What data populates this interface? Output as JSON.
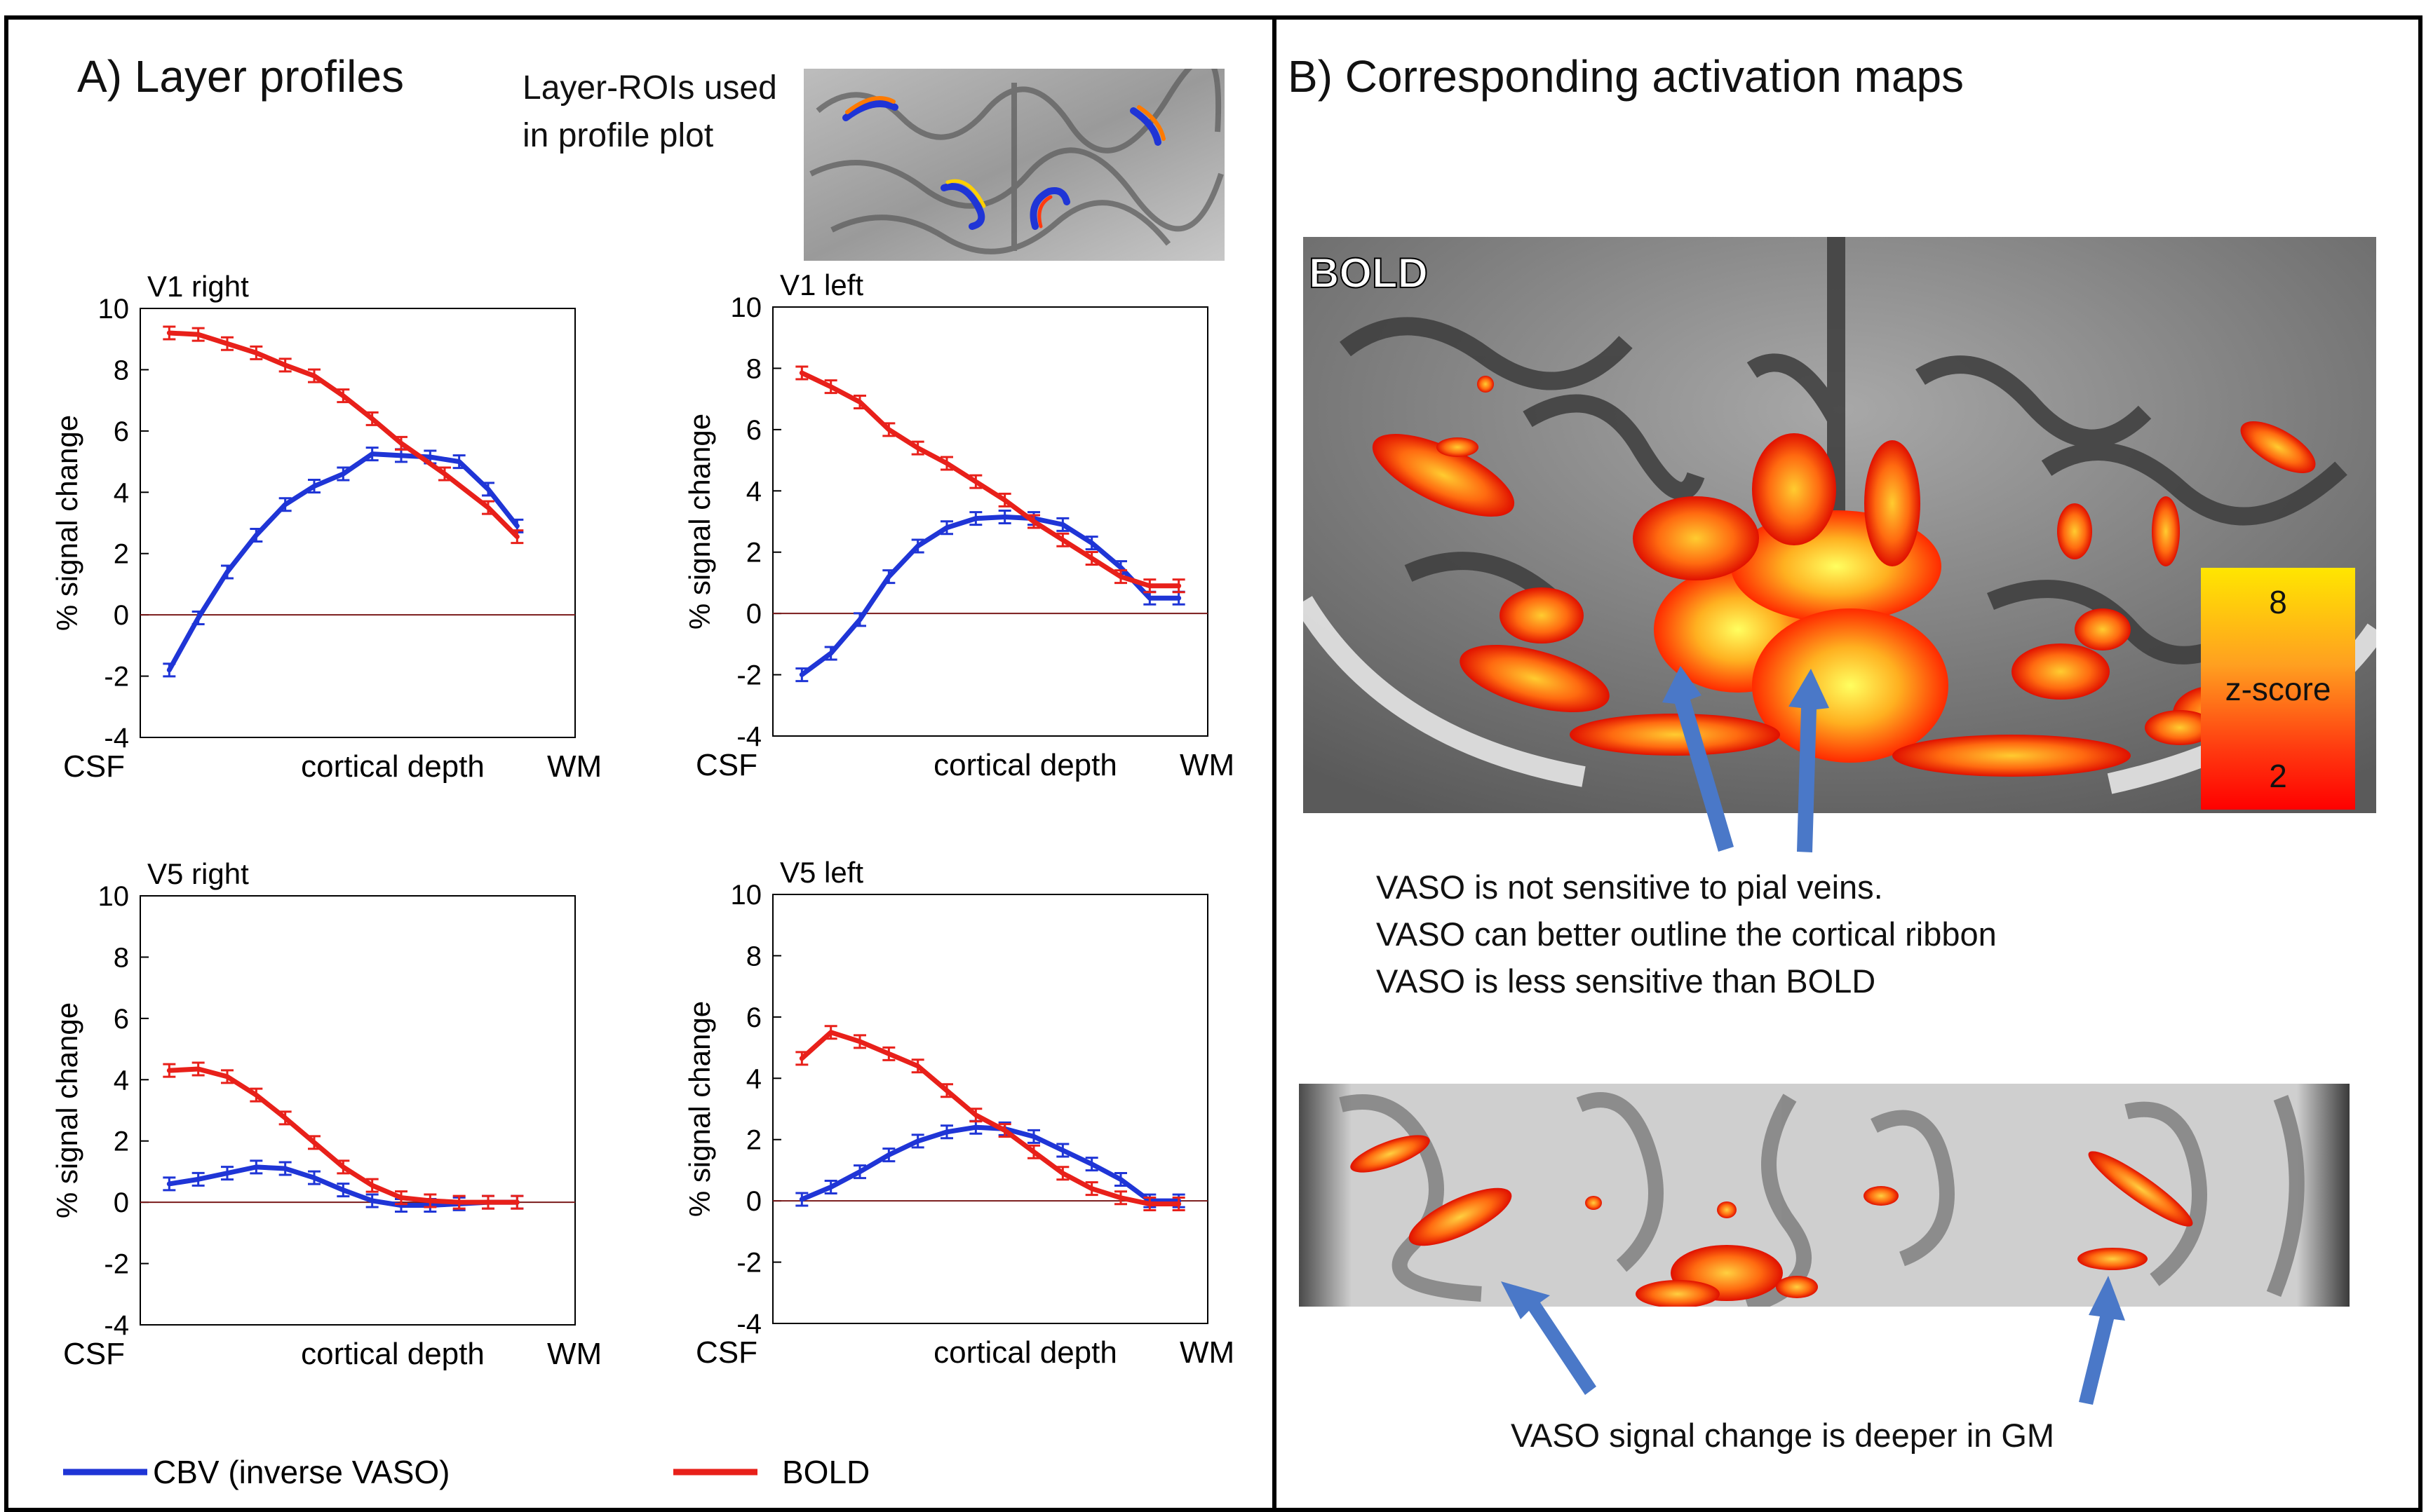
{
  "panel_a": {
    "title": "A) Layer profiles",
    "roi_note": [
      "Layer-ROIs used",
      "in profile plot"
    ]
  },
  "panel_b": {
    "title": "B) Corresponding activation maps",
    "bold_label": "BOLD",
    "colorbar": {
      "max": "8",
      "label": "z-score",
      "min": "2"
    },
    "caption_top": [
      "VASO is not sensitive to pial veins.",
      "VASO can better outline the cortical ribbon",
      "VASO is less sensitive than BOLD"
    ],
    "caption_bottom": "VASO signal change is deeper in GM"
  },
  "legend": [
    {
      "name": "CBV (inverse VASO)",
      "color": "#1f35d6"
    },
    {
      "name": "BOLD",
      "color": "#e8201a"
    }
  ],
  "colors": {
    "cbv": "#1f35d6",
    "bold": "#e8201a",
    "zero_line": "#7a1a1a"
  },
  "chart_data": [
    {
      "type": "line",
      "title": "V1 right",
      "xlabel": "cortical depth",
      "x_left": "CSF",
      "x_right": "WM",
      "ylabel": "% signal change",
      "ylim": [
        -4,
        10
      ],
      "yticks": [
        -4,
        -2,
        0,
        2,
        4,
        6,
        8,
        10
      ],
      "x": [
        1,
        2,
        3,
        4,
        5,
        6,
        7,
        8,
        9,
        10,
        11,
        12,
        13,
        14,
        15
      ],
      "series": [
        {
          "name": "CBV (inverse VASO)",
          "values": [
            -1.8,
            -0.1,
            1.4,
            2.6,
            3.6,
            4.2,
            4.6,
            5.25,
            5.2,
            5.15,
            5.0,
            4.1,
            2.9
          ],
          "x": [
            1,
            2,
            3,
            4,
            5,
            6,
            7,
            8,
            9,
            10,
            11,
            12,
            13
          ]
        },
        {
          "name": "BOLD",
          "values": [
            9.2,
            9.15,
            8.85,
            8.55,
            8.15,
            7.8,
            7.15,
            6.4,
            5.6,
            4.6,
            3.5,
            2.55
          ],
          "x": [
            1,
            2,
            3,
            4,
            5,
            6,
            7,
            8,
            9,
            10.5,
            12,
            13
          ]
        }
      ]
    },
    {
      "type": "line",
      "title": "V1 left",
      "xlabel": "cortical depth",
      "x_left": "CSF",
      "x_right": "WM",
      "ylabel": "% signal change",
      "ylim": [
        -4,
        10
      ],
      "yticks": [
        -4,
        -2,
        0,
        2,
        4,
        6,
        8,
        10
      ],
      "series": [
        {
          "name": "CBV (inverse VASO)",
          "x": [
            1,
            2,
            3,
            4,
            5,
            6,
            7,
            8,
            9,
            10,
            11,
            12,
            13,
            14
          ],
          "values": [
            -2.0,
            -1.3,
            -0.2,
            1.2,
            2.2,
            2.8,
            3.1,
            3.15,
            3.1,
            2.9,
            2.3,
            1.5,
            0.5,
            0.5
          ]
        },
        {
          "name": "BOLD",
          "x": [
            1,
            2,
            3,
            4,
            5,
            6,
            7,
            8,
            9,
            10,
            11,
            12,
            13,
            14
          ],
          "values": [
            7.85,
            7.4,
            6.9,
            6.0,
            5.4,
            4.9,
            4.3,
            3.7,
            3.0,
            2.4,
            1.8,
            1.2,
            0.9,
            0.9
          ]
        }
      ]
    },
    {
      "type": "line",
      "title": "V5 right",
      "xlabel": "cortical depth",
      "x_left": "CSF",
      "x_right": "WM",
      "ylabel": "% signal change",
      "ylim": [
        -4,
        10
      ],
      "yticks": [
        -4,
        -2,
        0,
        2,
        4,
        6,
        8,
        10
      ],
      "series": [
        {
          "name": "CBV (inverse VASO)",
          "x": [
            1,
            2,
            3,
            4,
            5,
            6,
            7,
            8,
            9,
            10,
            11,
            12,
            13
          ],
          "values": [
            0.6,
            0.75,
            0.95,
            1.15,
            1.1,
            0.8,
            0.4,
            0.05,
            -0.1,
            -0.1,
            -0.05,
            0.0,
            0.0
          ]
        },
        {
          "name": "BOLD",
          "x": [
            1,
            2,
            3,
            4,
            5,
            6,
            7,
            8,
            9,
            10,
            11,
            12,
            13
          ],
          "values": [
            4.3,
            4.35,
            4.1,
            3.5,
            2.75,
            1.95,
            1.15,
            0.55,
            0.15,
            0.05,
            0.0,
            0.0,
            0.0
          ]
        }
      ]
    },
    {
      "type": "line",
      "title": "V5 left",
      "xlabel": "cortical depth",
      "x_left": "CSF",
      "x_right": "WM",
      "ylabel": "% signal change",
      "ylim": [
        -4,
        10
      ],
      "yticks": [
        -4,
        -2,
        0,
        2,
        4,
        6,
        8,
        10
      ],
      "series": [
        {
          "name": "CBV (inverse VASO)",
          "x": [
            1,
            2,
            3,
            4,
            5,
            6,
            7,
            8,
            9,
            10,
            11,
            12,
            13,
            14
          ],
          "values": [
            0.05,
            0.45,
            0.95,
            1.5,
            1.95,
            2.25,
            2.4,
            2.35,
            2.1,
            1.65,
            1.2,
            0.7,
            0.0,
            0.0
          ]
        },
        {
          "name": "BOLD",
          "x": [
            1,
            2,
            3,
            4,
            5,
            6,
            7,
            8,
            9,
            10,
            11,
            12,
            13,
            14
          ],
          "values": [
            4.65,
            5.5,
            5.2,
            4.8,
            4.4,
            3.6,
            2.8,
            2.3,
            1.6,
            0.9,
            0.4,
            0.1,
            -0.1,
            -0.1
          ]
        }
      ]
    }
  ]
}
